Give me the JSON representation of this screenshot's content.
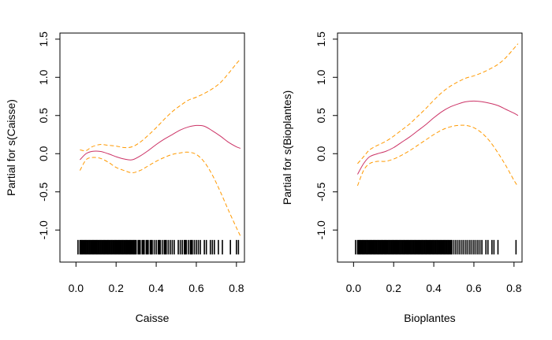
{
  "chart_data": [
    {
      "type": "line",
      "title": "",
      "xlabel": "Caisse",
      "ylabel": "Partial for s(Caisse)",
      "xlim": [
        -0.08,
        0.84
      ],
      "ylim": [
        -1.42,
        1.58
      ],
      "xticks": [
        "0.0",
        "0.2",
        "0.4",
        "0.6",
        "0.8"
      ],
      "xtick_values": [
        0.0,
        0.2,
        0.4,
        0.6,
        0.8
      ],
      "yticks": [
        "-1.0",
        "-0.5",
        "0.0",
        "0.5",
        "1.0",
        "1.5"
      ],
      "ytick_values": [
        -1.0,
        -0.5,
        0.0,
        0.5,
        1.0,
        1.5
      ],
      "series": [
        {
          "name": "fit",
          "color": "#CC3366",
          "dash": "solid",
          "x": [
            0.02,
            0.05,
            0.08,
            0.12,
            0.16,
            0.2,
            0.24,
            0.28,
            0.32,
            0.36,
            0.4,
            0.44,
            0.48,
            0.52,
            0.56,
            0.6,
            0.64,
            0.68,
            0.72,
            0.76,
            0.8,
            0.82
          ],
          "y": [
            -0.08,
            0.0,
            0.03,
            0.03,
            0.0,
            -0.04,
            -0.07,
            -0.08,
            -0.03,
            0.04,
            0.12,
            0.19,
            0.25,
            0.31,
            0.35,
            0.37,
            0.36,
            0.3,
            0.23,
            0.15,
            0.09,
            0.07
          ]
        },
        {
          "name": "upper",
          "color": "#FF9900",
          "dash": "dashed",
          "x": [
            0.02,
            0.05,
            0.08,
            0.12,
            0.16,
            0.2,
            0.24,
            0.28,
            0.32,
            0.36,
            0.4,
            0.44,
            0.48,
            0.52,
            0.56,
            0.6,
            0.64,
            0.68,
            0.72,
            0.76,
            0.8,
            0.82
          ],
          "y": [
            0.05,
            0.04,
            0.09,
            0.12,
            0.11,
            0.1,
            0.08,
            0.09,
            0.15,
            0.24,
            0.34,
            0.45,
            0.55,
            0.63,
            0.7,
            0.74,
            0.79,
            0.85,
            0.93,
            1.05,
            1.18,
            1.24
          ]
        },
        {
          "name": "lower",
          "color": "#FF9900",
          "dash": "dashed",
          "x": [
            0.02,
            0.05,
            0.08,
            0.12,
            0.16,
            0.2,
            0.24,
            0.28,
            0.32,
            0.36,
            0.4,
            0.44,
            0.48,
            0.52,
            0.56,
            0.6,
            0.64,
            0.68,
            0.72,
            0.76,
            0.8,
            0.82
          ],
          "y": [
            -0.22,
            -0.08,
            -0.05,
            -0.06,
            -0.11,
            -0.18,
            -0.22,
            -0.25,
            -0.22,
            -0.16,
            -0.1,
            -0.05,
            -0.01,
            0.01,
            0.02,
            -0.01,
            -0.11,
            -0.28,
            -0.5,
            -0.74,
            -0.97,
            -1.08
          ]
        }
      ],
      "rug": [
        0.01,
        0.02,
        0.025,
        0.03,
        0.035,
        0.04,
        0.045,
        0.05,
        0.055,
        0.06,
        0.065,
        0.07,
        0.075,
        0.08,
        0.085,
        0.09,
        0.095,
        0.1,
        0.105,
        0.11,
        0.115,
        0.12,
        0.125,
        0.13,
        0.135,
        0.14,
        0.145,
        0.15,
        0.155,
        0.16,
        0.165,
        0.17,
        0.175,
        0.18,
        0.185,
        0.19,
        0.195,
        0.2,
        0.205,
        0.21,
        0.215,
        0.22,
        0.225,
        0.23,
        0.235,
        0.24,
        0.245,
        0.25,
        0.255,
        0.26,
        0.265,
        0.27,
        0.275,
        0.28,
        0.285,
        0.29,
        0.295,
        0.3,
        0.31,
        0.315,
        0.32,
        0.33,
        0.335,
        0.34,
        0.35,
        0.355,
        0.36,
        0.37,
        0.375,
        0.38,
        0.39,
        0.4,
        0.41,
        0.415,
        0.42,
        0.43,
        0.44,
        0.445,
        0.45,
        0.46,
        0.47,
        0.48,
        0.49,
        0.51,
        0.52,
        0.53,
        0.54,
        0.545,
        0.55,
        0.56,
        0.57,
        0.575,
        0.58,
        0.59,
        0.6,
        0.61,
        0.62,
        0.64,
        0.65,
        0.67,
        0.68,
        0.69,
        0.71,
        0.73,
        0.77,
        0.8,
        0.81
      ]
    },
    {
      "type": "line",
      "title": "",
      "xlabel": "Bioplantes",
      "ylabel": "Partial for s(Bioplantes)",
      "xlim": [
        -0.08,
        0.84
      ],
      "ylim": [
        -1.42,
        1.58
      ],
      "xticks": [
        "0.0",
        "0.2",
        "0.4",
        "0.6",
        "0.8"
      ],
      "xtick_values": [
        0.0,
        0.2,
        0.4,
        0.6,
        0.8
      ],
      "yticks": [
        "-1.0",
        "-0.5",
        "0.0",
        "0.5",
        "1.0",
        "1.5"
      ],
      "ytick_values": [
        -1.0,
        -0.5,
        0.0,
        0.5,
        1.0,
        1.5
      ],
      "series": [
        {
          "name": "fit",
          "color": "#CC3366",
          "dash": "solid",
          "x": [
            0.02,
            0.05,
            0.08,
            0.12,
            0.16,
            0.2,
            0.24,
            0.28,
            0.32,
            0.36,
            0.4,
            0.44,
            0.48,
            0.52,
            0.56,
            0.6,
            0.64,
            0.68,
            0.72,
            0.76,
            0.8,
            0.82
          ],
          "y": [
            -0.27,
            -0.13,
            -0.04,
            0.0,
            0.03,
            0.08,
            0.15,
            0.22,
            0.3,
            0.38,
            0.47,
            0.55,
            0.61,
            0.65,
            0.68,
            0.69,
            0.68,
            0.66,
            0.63,
            0.58,
            0.53,
            0.5
          ]
        },
        {
          "name": "upper",
          "color": "#FF9900",
          "dash": "dashed",
          "x": [
            0.02,
            0.05,
            0.08,
            0.12,
            0.16,
            0.2,
            0.24,
            0.28,
            0.32,
            0.36,
            0.4,
            0.44,
            0.48,
            0.52,
            0.56,
            0.6,
            0.64,
            0.68,
            0.72,
            0.76,
            0.8,
            0.82
          ],
          "y": [
            -0.13,
            -0.04,
            0.05,
            0.11,
            0.16,
            0.23,
            0.31,
            0.39,
            0.49,
            0.59,
            0.7,
            0.8,
            0.88,
            0.94,
            0.99,
            1.02,
            1.06,
            1.11,
            1.17,
            1.26,
            1.38,
            1.44
          ]
        },
        {
          "name": "lower",
          "color": "#FF9900",
          "dash": "dashed",
          "x": [
            0.02,
            0.05,
            0.08,
            0.12,
            0.16,
            0.2,
            0.24,
            0.28,
            0.32,
            0.36,
            0.4,
            0.44,
            0.48,
            0.52,
            0.56,
            0.6,
            0.64,
            0.68,
            0.72,
            0.76,
            0.8,
            0.82
          ],
          "y": [
            -0.42,
            -0.22,
            -0.13,
            -0.1,
            -0.1,
            -0.07,
            -0.02,
            0.04,
            0.11,
            0.18,
            0.25,
            0.31,
            0.35,
            0.37,
            0.37,
            0.34,
            0.27,
            0.16,
            0.01,
            -0.16,
            -0.35,
            -0.43
          ]
        }
      ],
      "rug": [
        0.01,
        0.02,
        0.025,
        0.03,
        0.035,
        0.04,
        0.045,
        0.05,
        0.055,
        0.06,
        0.065,
        0.07,
        0.075,
        0.08,
        0.085,
        0.09,
        0.095,
        0.1,
        0.105,
        0.11,
        0.115,
        0.12,
        0.125,
        0.13,
        0.135,
        0.14,
        0.145,
        0.15,
        0.155,
        0.16,
        0.165,
        0.17,
        0.175,
        0.18,
        0.185,
        0.19,
        0.195,
        0.2,
        0.205,
        0.21,
        0.215,
        0.22,
        0.225,
        0.23,
        0.235,
        0.24,
        0.245,
        0.25,
        0.255,
        0.26,
        0.265,
        0.27,
        0.275,
        0.28,
        0.285,
        0.29,
        0.295,
        0.3,
        0.305,
        0.31,
        0.315,
        0.32,
        0.325,
        0.33,
        0.335,
        0.34,
        0.345,
        0.35,
        0.355,
        0.36,
        0.365,
        0.37,
        0.375,
        0.38,
        0.385,
        0.39,
        0.395,
        0.4,
        0.405,
        0.41,
        0.415,
        0.42,
        0.425,
        0.43,
        0.435,
        0.44,
        0.445,
        0.45,
        0.455,
        0.46,
        0.465,
        0.47,
        0.475,
        0.48,
        0.485,
        0.49,
        0.5,
        0.51,
        0.52,
        0.53,
        0.54,
        0.55,
        0.56,
        0.57,
        0.58,
        0.59,
        0.6,
        0.61,
        0.62,
        0.63,
        0.64,
        0.66,
        0.67,
        0.69,
        0.7,
        0.72,
        0.81
      ]
    }
  ]
}
